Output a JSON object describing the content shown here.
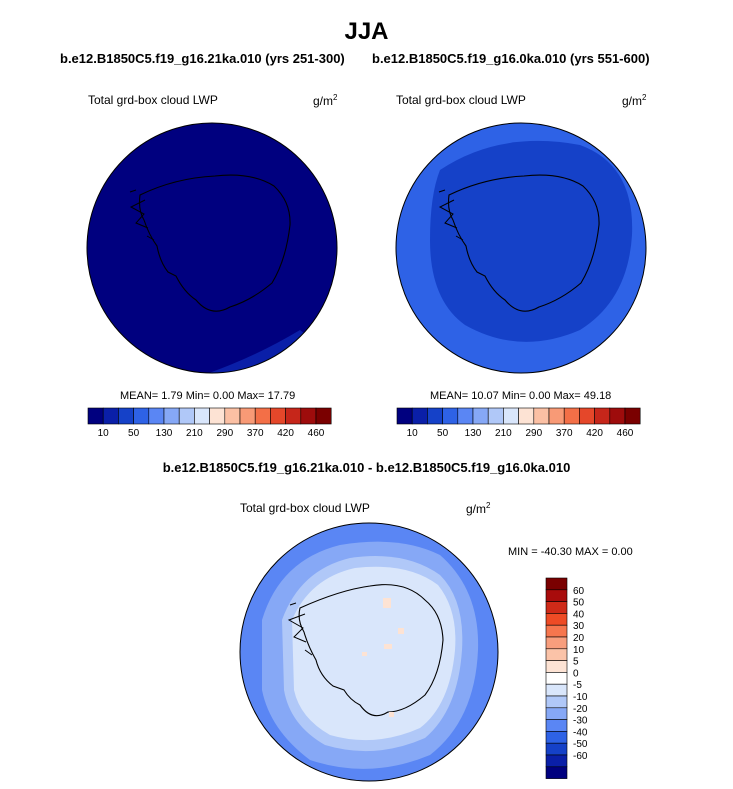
{
  "title": "JJA",
  "panels": [
    {
      "case_title": "b.e12.B1850C5.f19_g16.21ka.010 (yrs 251-300)",
      "label": "Total grd-box cloud LWP",
      "units": "g/m",
      "units_exp": "2",
      "stats": "MEAN=  1.79  Min=  0.00  Max=  17.79"
    },
    {
      "case_title": "b.e12.B1850C5.f19_g16.0ka.010 (yrs 551-600)",
      "label": "Total grd-box cloud LWP",
      "units": "g/m",
      "units_exp": "2",
      "stats": "MEAN=  10.07  Min=  0.00  Max=  49.18"
    }
  ],
  "top_colorbar": {
    "colors": [
      "#00007f",
      "#0a1fa8",
      "#1541c8",
      "#2e62e6",
      "#5a86f4",
      "#86a8f6",
      "#b0c8f8",
      "#d9e6fb",
      "#fde3d4",
      "#fbc0a4",
      "#f89a76",
      "#f36f47",
      "#e5472a",
      "#c6261a",
      "#9e0c0c",
      "#7a0000"
    ],
    "tick_labels": [
      "10",
      "50",
      "130",
      "210",
      "290",
      "370",
      "420",
      "460"
    ]
  },
  "diff": {
    "title": "b.e12.B1850C5.f19_g16.21ka.010 - b.e12.B1850C5.f19_g16.0ka.010",
    "label": "Total grd-box cloud LWP",
    "units": "g/m",
    "units_exp": "2",
    "stats": "MIN = -40.30 MAX =   0.00",
    "colorbar": {
      "colors": [
        "#7a0000",
        "#a80c0c",
        "#cf2a18",
        "#ee4b25",
        "#f6764e",
        "#f89e7d",
        "#fbc3a8",
        "#fde3d4",
        "#ffffff",
        "#d9e6fb",
        "#b0c8f8",
        "#86a8f6",
        "#5a86f4",
        "#2e62e6",
        "#1541c8",
        "#0a1fa8",
        "#00007f"
      ],
      "tick_labels": [
        "60",
        "50",
        "40",
        "30",
        "20",
        "10",
        "5",
        "0",
        "-5",
        "-10",
        "-20",
        "-30",
        "-40",
        "-50",
        "-60"
      ]
    }
  }
}
